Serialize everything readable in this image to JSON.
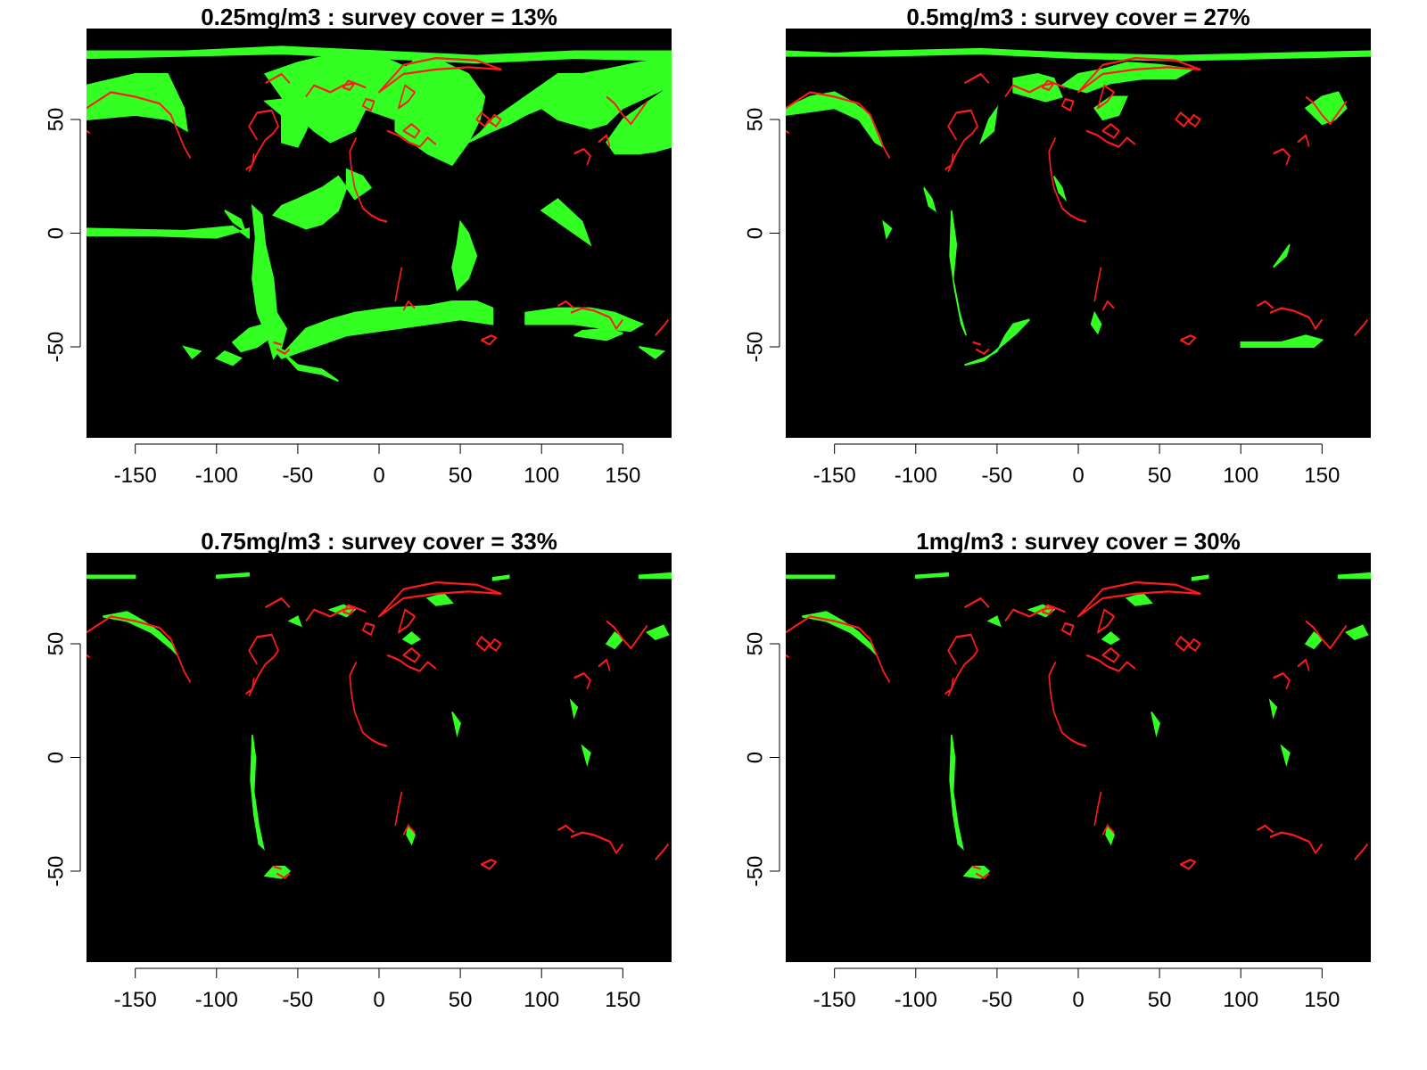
{
  "chart_data": [
    {
      "type": "map",
      "title": "0.25mg/m3 : survey cover = 13%",
      "threshold_mg_m3": 0.25,
      "survey_cover_percent": 13,
      "xlim": [
        -180,
        180
      ],
      "ylim": [
        -90,
        90
      ],
      "x_ticks": [
        "-150",
        "-100",
        "-50",
        "0",
        "50",
        "100",
        "150"
      ],
      "y_ticks": [
        "-50",
        "0",
        "50"
      ],
      "xlabel": "",
      "ylabel": "",
      "colors": {
        "background": "#000000",
        "above_threshold": "#33ff22",
        "survey_outline": "#ff1a1a"
      },
      "coverage_extent": "broad"
    },
    {
      "type": "map",
      "title": "0.5mg/m3 : survey cover = 27%",
      "threshold_mg_m3": 0.5,
      "survey_cover_percent": 27,
      "xlim": [
        -180,
        180
      ],
      "ylim": [
        -90,
        90
      ],
      "x_ticks": [
        "-150",
        "-100",
        "-50",
        "0",
        "50",
        "100",
        "150"
      ],
      "y_ticks": [
        "-50",
        "0",
        "50"
      ],
      "xlabel": "",
      "ylabel": "",
      "colors": {
        "background": "#000000",
        "above_threshold": "#33ff22",
        "survey_outline": "#ff1a1a"
      },
      "coverage_extent": "moderate"
    },
    {
      "type": "map",
      "title": "0.75mg/m3 : survey cover = 33%",
      "threshold_mg_m3": 0.75,
      "survey_cover_percent": 33,
      "xlim": [
        -180,
        180
      ],
      "ylim": [
        -90,
        90
      ],
      "x_ticks": [
        "-150",
        "-100",
        "-50",
        "0",
        "50",
        "100",
        "150"
      ],
      "y_ticks": [
        "-50",
        "0",
        "50"
      ],
      "xlabel": "",
      "ylabel": "",
      "colors": {
        "background": "#000000",
        "above_threshold": "#33ff22",
        "survey_outline": "#ff1a1a"
      },
      "coverage_extent": "coastal"
    },
    {
      "type": "map",
      "title": "1mg/m3 : survey cover = 30%",
      "threshold_mg_m3": 1,
      "survey_cover_percent": 30,
      "xlim": [
        -180,
        180
      ],
      "ylim": [
        -90,
        90
      ],
      "x_ticks": [
        "-150",
        "-100",
        "-50",
        "0",
        "50",
        "100",
        "150"
      ],
      "y_ticks": [
        "-50",
        "0",
        "50"
      ],
      "xlabel": "",
      "ylabel": "",
      "colors": {
        "background": "#000000",
        "above_threshold": "#33ff22",
        "survey_outline": "#ff1a1a"
      },
      "coverage_extent": "coastal"
    }
  ]
}
